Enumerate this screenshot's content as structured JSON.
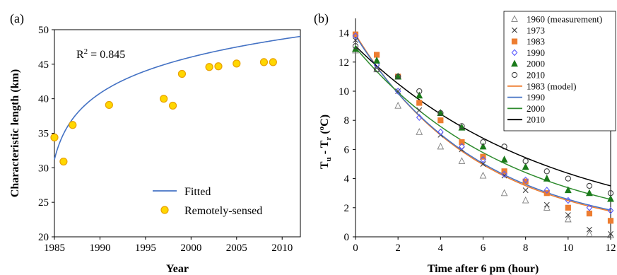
{
  "chart_data": [
    {
      "panel_label": "(a)",
      "type": "scatter",
      "xlabel": "Year",
      "ylabel": "Characteristic length (km)",
      "xlim": [
        1985,
        2012
      ],
      "ylim": [
        20,
        50
      ],
      "xticks": [
        1985,
        1990,
        1995,
        2000,
        2005,
        2010
      ],
      "yticks": [
        20,
        25,
        30,
        35,
        40,
        45,
        50
      ],
      "annotation": {
        "prefix": "R",
        "sup": "2",
        "suffix": " = 0.845"
      },
      "legend_position": "bottom-right",
      "grid": false,
      "series": [
        {
          "name": "Fitted",
          "kind": "line",
          "color": "#4472c4",
          "model": "log",
          "a": 31.2,
          "b": 5.35,
          "x0": 1985,
          "x_from": 1985,
          "x_to": 2012
        },
        {
          "name": "Remotely-sensed",
          "kind": "points",
          "marker": "circle",
          "color": "#ffd700",
          "edge": "#e8a000",
          "x": [
            1985,
            1986,
            1987,
            1991,
            1997,
            1998,
            1999,
            2002,
            2003,
            2005,
            2008,
            2009
          ],
          "y": [
            34.4,
            30.9,
            36.2,
            39.1,
            40.0,
            39.0,
            43.6,
            44.6,
            44.7,
            45.1,
            45.3,
            45.3
          ]
        }
      ]
    },
    {
      "panel_label": "(b)",
      "type": "scatter",
      "xlabel": "Time after 6 pm (hour)",
      "ylabel": {
        "t1": "T",
        "s1": "u",
        "t2": " - T",
        "s2": "r",
        "t3": " (",
        "sup": "o",
        "t4": "C)"
      },
      "xlim": [
        0,
        12
      ],
      "ylim": [
        0,
        15
      ],
      "xticks": [
        0,
        2,
        4,
        6,
        8,
        10,
        12
      ],
      "yticks": [
        0,
        2,
        4,
        6,
        8,
        10,
        12,
        14
      ],
      "legend_position": "top-right",
      "grid": false,
      "series": [
        {
          "name": "1960 (measurement)",
          "kind": "points",
          "marker": "triangle-open",
          "color": "#7f7f7f",
          "x": [
            0,
            1,
            2,
            3,
            4,
            5,
            6,
            7,
            8,
            9,
            10,
            11,
            12
          ],
          "y": [
            12.8,
            11.5,
            9.0,
            7.2,
            6.2,
            5.2,
            4.2,
            3.0,
            2.5,
            2.0,
            1.2,
            0.2,
            0.1
          ]
        },
        {
          "name": "1973",
          "kind": "points",
          "marker": "x",
          "color": "#404040",
          "x": [
            0,
            1,
            2,
            3,
            4,
            5,
            6,
            7,
            8,
            9,
            10,
            11,
            12
          ],
          "y": [
            13.5,
            11.6,
            10.0,
            8.7,
            7.0,
            6.0,
            5.0,
            4.2,
            3.2,
            2.2,
            1.5,
            0.5,
            0.2
          ]
        },
        {
          "name": "1983",
          "kind": "points",
          "marker": "square",
          "color": "#ed7d31",
          "x": [
            0,
            1,
            2,
            3,
            4,
            5,
            6,
            7,
            8,
            9,
            10,
            11,
            12
          ],
          "y": [
            13.9,
            12.5,
            11.0,
            9.2,
            8.0,
            6.5,
            5.5,
            4.5,
            3.8,
            3.0,
            2.0,
            1.6,
            1.1
          ]
        },
        {
          "name": "1990",
          "kind": "points",
          "marker": "diamond-open",
          "color": "#5b5bff",
          "x": [
            0,
            1,
            2,
            3,
            4,
            5,
            6,
            7,
            8,
            9,
            10,
            11,
            12
          ],
          "y": [
            13.8,
            11.8,
            10.0,
            8.2,
            7.2,
            6.2,
            5.3,
            4.3,
            3.9,
            3.2,
            2.5,
            2.0,
            1.8
          ]
        },
        {
          "name": "2000",
          "kind": "points",
          "marker": "triangle",
          "color": "#1a7a1a",
          "x": [
            0,
            1,
            2,
            3,
            4,
            5,
            6,
            7,
            8,
            9,
            10,
            11,
            12
          ],
          "y": [
            12.9,
            12.1,
            11.0,
            9.7,
            8.5,
            7.5,
            6.2,
            5.3,
            4.8,
            4.0,
            3.2,
            3.0,
            2.6
          ]
        },
        {
          "name": "2010",
          "kind": "points",
          "marker": "circle-open",
          "color": "#404040",
          "x": [
            0,
            1,
            2,
            3,
            4,
            5,
            6,
            7,
            8,
            9,
            10,
            11,
            12
          ],
          "y": [
            13.1,
            11.5,
            11.0,
            10.0,
            8.5,
            7.6,
            6.5,
            6.2,
            5.2,
            4.5,
            4.0,
            3.5,
            3.0
          ]
        },
        {
          "name": "1983 (model)",
          "kind": "line",
          "color": "#ed7d31",
          "model": "exp",
          "y0": 13.9,
          "k": 0.172
        },
        {
          "name": "1990",
          "kind": "line",
          "color": "#4472c4",
          "model": "exp",
          "y0": 13.8,
          "k": 0.168
        },
        {
          "name": "2000",
          "kind": "line",
          "color": "#2e8b2e",
          "model": "exp",
          "y0": 13.0,
          "k": 0.135
        },
        {
          "name": "2010",
          "kind": "line",
          "color": "#000000",
          "model": "exp",
          "y0": 13.1,
          "k": 0.11
        }
      ]
    }
  ]
}
